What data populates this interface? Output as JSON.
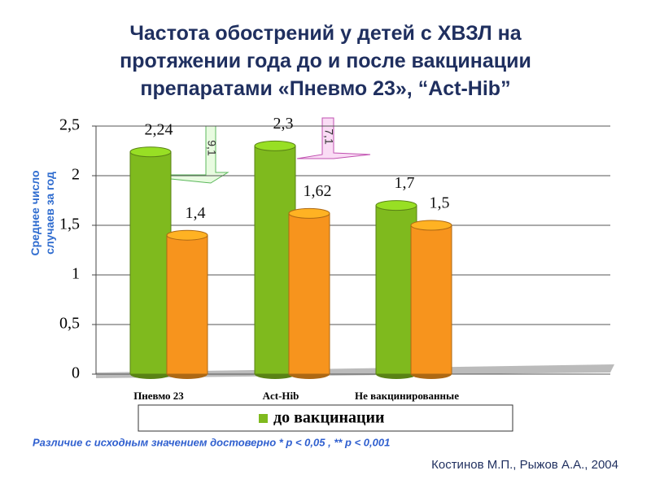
{
  "chart_data": {
    "type": "bar",
    "title": [
      "Частота обострений у детей с ХВЗЛ на",
      "протяжении года до и после вакцинации",
      "препаратами «Пневмо 23»,   “Act-Hib”"
    ],
    "y_label": [
      "Среднее число",
      "случаев за год"
    ],
    "categories": [
      "Пневмо 23",
      "Act-Hib",
      "Не вакцинированные"
    ],
    "series": [
      {
        "name": "до вакцинации",
        "color": "#7fba1e",
        "values": [
          2.24,
          2.3,
          1.7
        ],
        "value_labels": [
          "2,24",
          "2,3",
          "1,7"
        ]
      },
      {
        "color": "#f7941d",
        "values": [
          1.4,
          1.62,
          1.5
        ],
        "value_labels": [
          "1,4",
          "1,62",
          "1,5"
        ]
      }
    ],
    "ylim": [
      0,
      2.5
    ],
    "yticks": [
      0,
      {
        "value": 0.5,
        "label": "0,5"
      },
      1,
      {
        "value": 1.5,
        "label": "1,5"
      },
      2,
      {
        "value": 2.5,
        "label": "2,5"
      }
    ],
    "grid": true,
    "annotations": [
      "9,1",
      "7,1"
    ],
    "footnote": "Различие с исходным значением достоверно * p < 0,05 ,  ** p < 0,001",
    "source": "Костинов М.П., Рыжов А.А., 2004"
  }
}
